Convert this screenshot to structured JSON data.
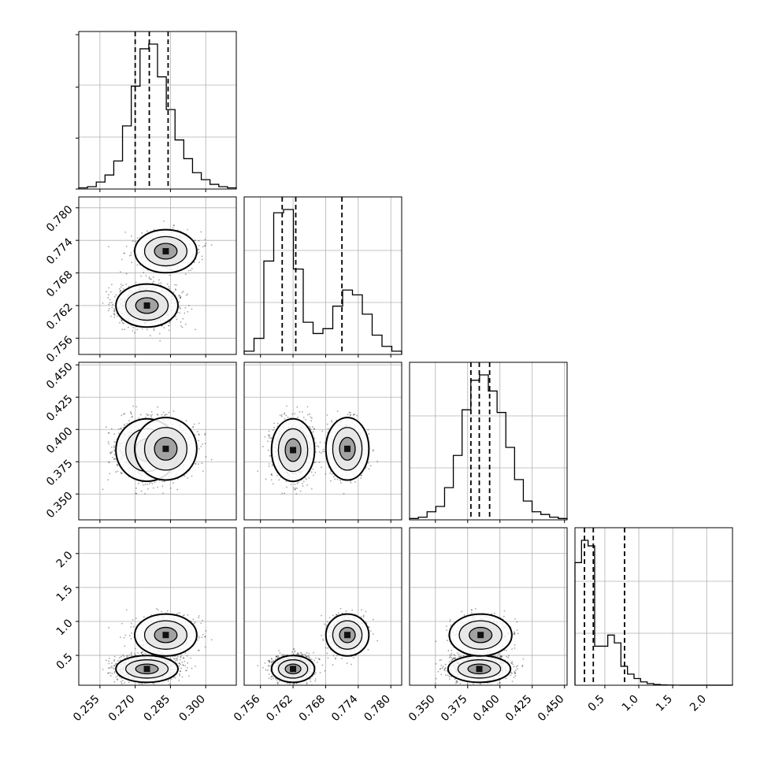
{
  "chart_data": {
    "type": "corner",
    "description_free": true,
    "variables": [
      {
        "range": [
          0.246,
          0.313
        ],
        "ticks": [
          0.255,
          0.27,
          0.285,
          0.3
        ],
        "tick_labels": [
          "0.255",
          "0.270",
          "0.285",
          "0.300"
        ],
        "quantiles": [
          0.27,
          0.276,
          0.284
        ],
        "hist": [
          0.5,
          1,
          3,
          6,
          12,
          27,
          44,
          60,
          62,
          48,
          34,
          21,
          13,
          7,
          4,
          2,
          1,
          0.5
        ]
      },
      {
        "range": [
          0.753,
          0.782
        ],
        "ticks": [
          0.756,
          0.762,
          0.768,
          0.774,
          0.78
        ],
        "tick_labels": [
          "0.756",
          "0.762",
          "0.768",
          "0.774",
          "0.780"
        ],
        "quantiles": [
          0.76,
          0.7625,
          0.771
        ],
        "hist": [
          2,
          10,
          58,
          88,
          90,
          53,
          20,
          13,
          16,
          30,
          40,
          37,
          25,
          12,
          5,
          2
        ]
      },
      {
        "range": [
          0.33,
          0.452
        ],
        "ticks": [
          0.35,
          0.375,
          0.4,
          0.425,
          0.45
        ],
        "tick_labels": [
          "0.350",
          "0.375",
          "0.400",
          "0.425",
          "0.450"
        ],
        "quantiles": [
          0.3775,
          0.384,
          0.392
        ],
        "hist": [
          0.5,
          1,
          3,
          5,
          12,
          24,
          41,
          52,
          54,
          48,
          40,
          27,
          15,
          7,
          3,
          2,
          1,
          0.5
        ]
      },
      {
        "range": [
          0.06,
          2.38
        ],
        "ticks": [
          0.5,
          1.0,
          1.5,
          2.0
        ],
        "tick_labels": [
          "0.5",
          "1.0",
          "1.5",
          "2.0"
        ],
        "quantiles": [
          0.2,
          0.33,
          0.79
        ],
        "hist": [
          110,
          130,
          125,
          35,
          35,
          45,
          38,
          17,
          10,
          6,
          3,
          1.5,
          0.7,
          0.3,
          0.15,
          0.1,
          0.05,
          0.05,
          0.05,
          0.05,
          0.05,
          0.05,
          0.05,
          0.05
        ]
      }
    ],
    "left_tick_rows": [
      1,
      2,
      3
    ],
    "bottom_tick_cols": [
      0,
      1,
      2,
      3
    ],
    "posterior_modes": [
      {
        "values": [
          0.275,
          0.762,
          0.384,
          0.3
        ],
        "weight": 0.65,
        "sd": [
          0.006,
          0.0018,
          0.011,
          0.09
        ]
      },
      {
        "values": [
          0.283,
          0.772,
          0.385,
          0.8
        ],
        "weight": 0.35,
        "sd": [
          0.006,
          0.0018,
          0.011,
          0.14
        ]
      }
    ],
    "grid": true,
    "density_color": "#000000",
    "grid_color": "#b0b0b0"
  }
}
